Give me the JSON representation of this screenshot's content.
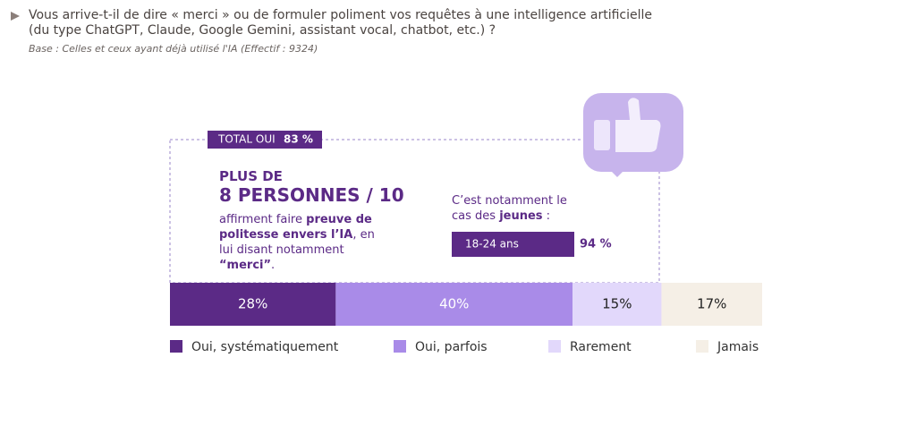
{
  "question": "Vous arrive-t-il de dire « merci » ou de formuler poliment vos requêtes à une intelligence artificielle (du type ChatGPT, Claude, Google Gemini, assistant vocal, chatbot, etc.) ?",
  "base": "Base : Celles et ceux ayant déjà utilisé l'IA (Effectif : 9324)",
  "total": {
    "label": "TOTAL OUI",
    "value": 83,
    "value_label": "83 %"
  },
  "callout": {
    "line1": "PLUS DE",
    "line2": "8 PERSONNES / 10",
    "text": [
      "affirment faire ",
      "preuve de politesse envers l’IA",
      ", en lui disant notamment ",
      "“merci”",
      "."
    ]
  },
  "youth": {
    "text": [
      "C’est notamment le cas des ",
      "jeunes",
      " :"
    ],
    "label": "18-24 ans",
    "value": 94,
    "value_label": "94 %"
  },
  "chart_data": {
    "type": "stacked-bar",
    "xlim": [
      0,
      100
    ],
    "series": [
      {
        "name": "Oui, systématiquement",
        "color": "#5b2a86",
        "values": [
          28
        ],
        "value_labels": [
          "28%"
        ]
      },
      {
        "name": "Oui, parfois",
        "color": "#a98be8",
        "values": [
          40
        ],
        "value_labels": [
          "40%"
        ]
      },
      {
        "name": "Rarement",
        "color": "#e2d8fb",
        "values": [
          15
        ],
        "value_labels": [
          "15%"
        ]
      },
      {
        "name": "Jamais",
        "color": "#f5efe6",
        "values": [
          17
        ],
        "value_labels": [
          "17%"
        ]
      }
    ]
  }
}
